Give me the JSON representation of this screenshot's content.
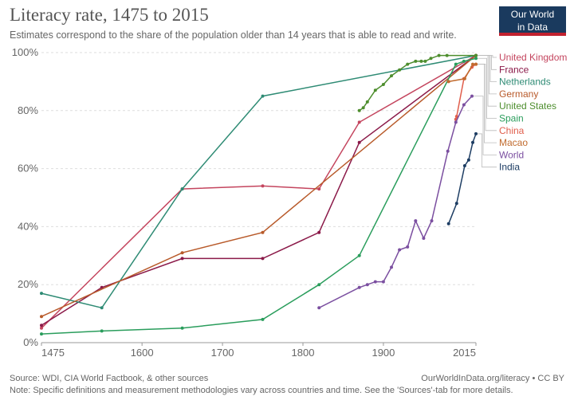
{
  "title": "Literacy rate, 1475 to 2015",
  "subtitle": "Estimates correspond to the share of the population older than 14 years that is able to read and write.",
  "logo": {
    "line1": "Our World",
    "line2": "in Data"
  },
  "footer": {
    "source": "Source: WDI, CIA World Factbook, & other sources",
    "note": "Note: Specific definitions and measurement methodologies vary across countries and time. See the 'Sources'-tab for more details.",
    "credit": "OurWorldInData.org/literacy • CC BY"
  },
  "chart_data": {
    "type": "line",
    "xlim": [
      1475,
      2015
    ],
    "ylim": [
      0,
      100
    ],
    "x_ticks": [
      1475,
      1600,
      1700,
      1800,
      1900,
      2015
    ],
    "y_ticks": [
      0,
      20,
      40,
      60,
      80,
      100
    ],
    "y_tick_labels": [
      "0%",
      "20%",
      "40%",
      "60%",
      "80%",
      "100%"
    ],
    "grid": "horizontal dotted",
    "legend": "right, labels at line ends",
    "series": [
      {
        "name": "United Kingdom",
        "color": "#c4455e",
        "points": [
          [
            1475,
            5
          ],
          [
            1650,
            53
          ],
          [
            1750,
            54
          ],
          [
            1820,
            53
          ],
          [
            1870,
            76
          ],
          [
            2015,
            99
          ]
        ]
      },
      {
        "name": "France",
        "color": "#8b1a49",
        "points": [
          [
            1475,
            6
          ],
          [
            1550,
            19
          ],
          [
            1650,
            29
          ],
          [
            1750,
            29
          ],
          [
            1820,
            38
          ],
          [
            1870,
            69
          ],
          [
            2015,
            99
          ]
        ]
      },
      {
        "name": "Netherlands",
        "color": "#2e8b74",
        "points": [
          [
            1475,
            17
          ],
          [
            1550,
            12
          ],
          [
            1650,
            53
          ],
          [
            1750,
            85
          ],
          [
            2015,
            99
          ]
        ]
      },
      {
        "name": "Germany",
        "color": "#b85a2a",
        "points": [
          [
            1475,
            9
          ],
          [
            1650,
            31
          ],
          [
            1750,
            38
          ],
          [
            2015,
            99
          ]
        ]
      },
      {
        "name": "United States",
        "color": "#4e8e2e",
        "points": [
          [
            1870,
            80
          ],
          [
            1875,
            81
          ],
          [
            1880,
            83
          ],
          [
            1890,
            87
          ],
          [
            1900,
            89
          ],
          [
            1910,
            92
          ],
          [
            1920,
            94
          ],
          [
            1930,
            96
          ],
          [
            1940,
            97
          ],
          [
            1947,
            97
          ],
          [
            1952,
            97
          ],
          [
            1959,
            98
          ],
          [
            1969,
            99
          ],
          [
            1979,
            99
          ],
          [
            2015,
            99
          ]
        ]
      },
      {
        "name": "Spain",
        "color": "#2a9d5c",
        "points": [
          [
            1475,
            3
          ],
          [
            1550,
            4
          ],
          [
            1650,
            5
          ],
          [
            1750,
            8
          ],
          [
            1820,
            20
          ],
          [
            1870,
            30
          ],
          [
            1990,
            96
          ],
          [
            2000,
            97
          ],
          [
            2015,
            98
          ]
        ]
      },
      {
        "name": "China",
        "color": "#e05e4c",
        "points": [
          [
            1990,
            77
          ],
          [
            1991,
            78
          ],
          [
            2000,
            91
          ],
          [
            2010,
            95
          ],
          [
            2015,
            96
          ]
        ]
      },
      {
        "name": "Macao",
        "color": "#c16b2e",
        "points": [
          [
            1981,
            90
          ],
          [
            2001,
            91
          ],
          [
            2011,
            96
          ],
          [
            2015,
            96
          ]
        ]
      },
      {
        "name": "World",
        "color": "#7b4fa0",
        "points": [
          [
            1820,
            12
          ],
          [
            1870,
            19
          ],
          [
            1880,
            20
          ],
          [
            1890,
            21
          ],
          [
            1900,
            21
          ],
          [
            1910,
            26
          ],
          [
            1920,
            32
          ],
          [
            1930,
            33
          ],
          [
            1940,
            42
          ],
          [
            1950,
            36
          ],
          [
            1960,
            42
          ],
          [
            1980,
            66
          ],
          [
            1990,
            76
          ],
          [
            2000,
            82
          ],
          [
            2010,
            85
          ]
        ]
      },
      {
        "name": "India",
        "color": "#1d3d63",
        "points": [
          [
            1981,
            41
          ],
          [
            1991,
            48
          ],
          [
            2001,
            61
          ],
          [
            2006,
            63
          ],
          [
            2011,
            69
          ],
          [
            2015,
            72
          ]
        ]
      }
    ]
  }
}
